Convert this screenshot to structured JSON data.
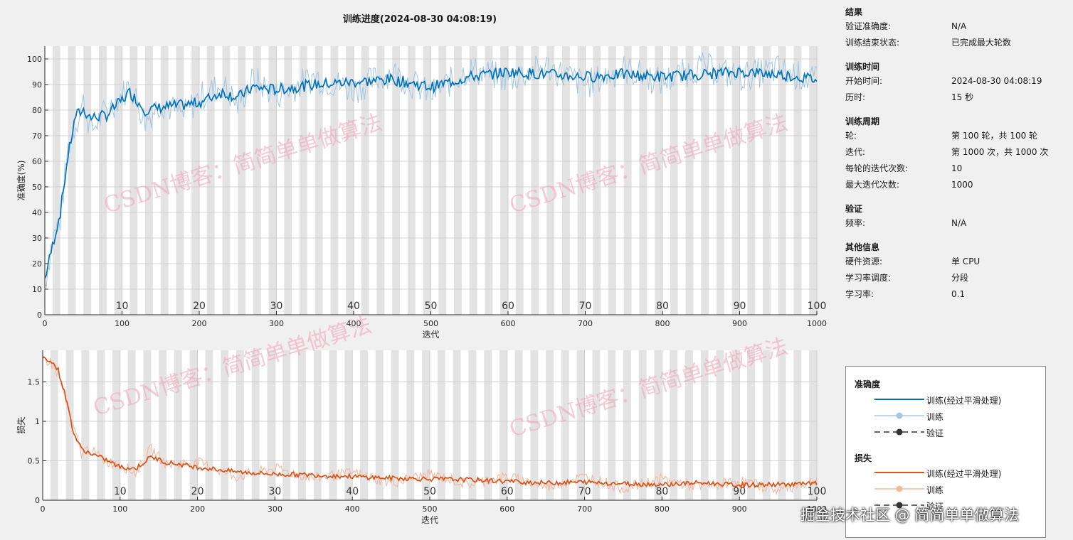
{
  "title": "训练进度(2024-08-30 04:08:19)",
  "watermark": "CSDN博客：简简单单做算法",
  "footer_watermark": "掘金技术社区 @ 简简单单做算法",
  "info_panel": {
    "sections": [
      {
        "title": "结果",
        "rows": [
          {
            "label": "验证准确度:",
            "value": "N/A"
          },
          {
            "label": "训练结束状态:",
            "value": "已完成最大轮数"
          }
        ]
      },
      {
        "title": "训练时间",
        "rows": [
          {
            "label": "开始时间:",
            "value": "2024-08-30 04:08:19"
          },
          {
            "label": "历时:",
            "value": "15 秒"
          }
        ]
      },
      {
        "title": "训练周期",
        "rows": [
          {
            "label": "轮:",
            "value": "第 100 轮，共 100 轮"
          },
          {
            "label": "迭代:",
            "value": "第 1000 次，共 1000 次"
          },
          {
            "label": "每轮的迭代次数:",
            "value": "10"
          },
          {
            "label": "最大迭代次数:",
            "value": "1000"
          }
        ]
      },
      {
        "title": "验证",
        "rows": [
          {
            "label": "频率:",
            "value": "N/A"
          }
        ]
      },
      {
        "title": "其他信息",
        "rows": [
          {
            "label": "硬件资源:",
            "value": "单 CPU"
          },
          {
            "label": "学习率调度:",
            "value": "分段"
          },
          {
            "label": "学习率:",
            "value": "0.1"
          }
        ]
      }
    ]
  },
  "legend": {
    "accuracy_title": "准确度",
    "accuracy_items": [
      "训练(经过平滑处理)",
      "训练",
      "验证"
    ],
    "loss_title": "损失",
    "loss_items": [
      "训练(经过平滑处理)",
      "训练",
      "验证"
    ]
  },
  "colors": {
    "accuracy_smoothed": "#0072BD",
    "accuracy_raw": "#A6C8E0",
    "loss_smoothed": "#D95319",
    "loss_raw": "#F0B9A0",
    "validation": "#333333",
    "epoch_band": "#d9d9d9",
    "watermark": "#f2a0b8"
  },
  "chart_data": [
    {
      "type": "line",
      "xlabel": "迭代",
      "ylabel": "准确度(%)",
      "xlim": [
        0,
        1000
      ],
      "ylim": [
        0,
        105
      ],
      "xticks": [
        0,
        100,
        200,
        300,
        400,
        500,
        600,
        700,
        800,
        900,
        1000
      ],
      "yticks": [
        0,
        10,
        20,
        30,
        40,
        50,
        60,
        70,
        80,
        90,
        100
      ],
      "epoch_labels": [
        10,
        20,
        30,
        40,
        50,
        60,
        70,
        80,
        90,
        100
      ],
      "epochs": 100,
      "iterations_per_epoch": 10,
      "grid": true,
      "series": [
        {
          "name": "训练(经过平滑处理)",
          "x": [
            0,
            10,
            20,
            30,
            40,
            50,
            60,
            80,
            100,
            110,
            130,
            150,
            180,
            200,
            230,
            250,
            270,
            300,
            350,
            400,
            450,
            500,
            550,
            600,
            650,
            700,
            750,
            800,
            850,
            900,
            950,
            1000
          ],
          "y": [
            14,
            27,
            40,
            62,
            78,
            80,
            77,
            78,
            84,
            87,
            80,
            81,
            82,
            83,
            87,
            85,
            89,
            88,
            90,
            91,
            92,
            89,
            93,
            95,
            94,
            93,
            94,
            93,
            94,
            95,
            94,
            92
          ]
        },
        {
          "name": "训练",
          "x": [
            0,
            10,
            20,
            30,
            40,
            50,
            60,
            80,
            100,
            110,
            130,
            150,
            180,
            200,
            230,
            250,
            270,
            300,
            350,
            400,
            450,
            500,
            550,
            600,
            650,
            700,
            750,
            800,
            850,
            900,
            950,
            1000
          ],
          "y": [
            12,
            30,
            37,
            65,
            75,
            83,
            72,
            80,
            86,
            90,
            76,
            83,
            78,
            85,
            90,
            82,
            92,
            86,
            93,
            88,
            95,
            86,
            96,
            92,
            97,
            90,
            96,
            91,
            97,
            93,
            96,
            91
          ]
        }
      ]
    },
    {
      "type": "line",
      "xlabel": "迭代",
      "ylabel": "损失",
      "xlim": [
        0,
        1000
      ],
      "ylim": [
        0,
        1.9
      ],
      "xticks": [
        0,
        100,
        200,
        300,
        400,
        500,
        600,
        700,
        800,
        900,
        1000
      ],
      "yticks": [
        0,
        0.5,
        1,
        1.5
      ],
      "epoch_labels": [
        10,
        20,
        30,
        40,
        50,
        60,
        70,
        80,
        90,
        100
      ],
      "epochs": 100,
      "grid": true,
      "series": [
        {
          "name": "训练(经过平滑处理)",
          "x": [
            0,
            10,
            20,
            30,
            40,
            50,
            60,
            80,
            100,
            120,
            140,
            160,
            200,
            250,
            300,
            350,
            400,
            450,
            500,
            550,
            600,
            650,
            700,
            750,
            800,
            850,
            900,
            950,
            1000
          ],
          "y": [
            1.8,
            1.78,
            1.65,
            1.3,
            0.85,
            0.65,
            0.6,
            0.52,
            0.42,
            0.4,
            0.55,
            0.48,
            0.42,
            0.36,
            0.33,
            0.32,
            0.3,
            0.28,
            0.27,
            0.26,
            0.24,
            0.22,
            0.23,
            0.21,
            0.2,
            0.22,
            0.19,
            0.2,
            0.21
          ]
        },
        {
          "name": "训练",
          "x": [
            0,
            10,
            20,
            30,
            40,
            50,
            60,
            80,
            100,
            120,
            140,
            160,
            200,
            250,
            300,
            350,
            400,
            450,
            500,
            550,
            600,
            650,
            700,
            750,
            800,
            850,
            900,
            950,
            1000
          ],
          "y": [
            1.8,
            1.75,
            1.6,
            1.25,
            0.9,
            0.6,
            0.65,
            0.5,
            0.45,
            0.35,
            0.65,
            0.45,
            0.48,
            0.3,
            0.4,
            0.28,
            0.35,
            0.22,
            0.33,
            0.2,
            0.3,
            0.17,
            0.3,
            0.15,
            0.27,
            0.16,
            0.25,
            0.13,
            0.25
          ]
        }
      ]
    }
  ]
}
